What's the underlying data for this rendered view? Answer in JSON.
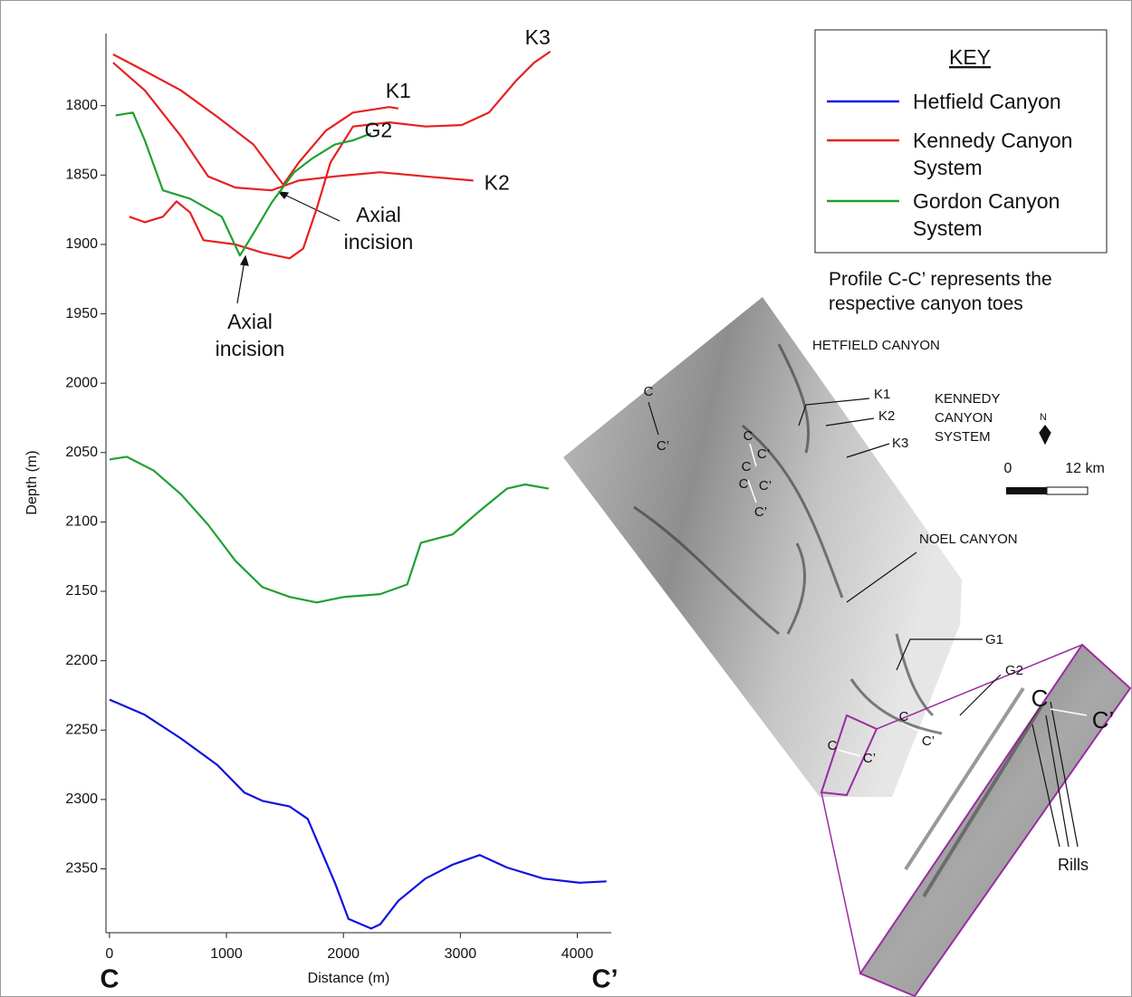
{
  "chart_data": {
    "type": "line",
    "x_label": "Distance (m)",
    "y_label": "Depth (m)",
    "xlim": [
      -30,
      4290
    ],
    "ylim": [
      1748,
      2396
    ],
    "y_inverted": true,
    "xticks": [
      0,
      1000,
      2000,
      3000,
      4000
    ],
    "yticks": [
      1800,
      1850,
      1900,
      1950,
      2000,
      2050,
      2100,
      2150,
      2200,
      2250,
      2300,
      2350
    ],
    "profile_ends": [
      "C",
      "C’"
    ],
    "legend_title": "KEY",
    "legend": [
      {
        "name": "Hetfield Canyon",
        "color": "#1010e0"
      },
      {
        "name": "Kennedy Canyon System",
        "color": "#e82020"
      },
      {
        "name": "Gordon Canyon System",
        "color": "#20a030"
      }
    ],
    "series": [
      {
        "label": "K1",
        "color": "#e82020",
        "x": [
          31,
          302,
          611,
          921,
          1231,
          1486,
          1618,
          1850,
          2082,
          2392,
          2469
        ],
        "values": [
          1763,
          1775,
          1789,
          1808,
          1828,
          1857,
          1841,
          1818,
          1805,
          1801,
          1802
        ]
      },
      {
        "label": "K2",
        "color": "#e82020",
        "x": [
          31,
          302,
          611,
          843,
          1076,
          1385,
          1618,
          1927,
          2314,
          2701,
          3111
        ],
        "values": [
          1769,
          1789,
          1822,
          1851,
          1859,
          1861,
          1854,
          1851,
          1848,
          1851,
          1854
        ]
      },
      {
        "label": "K3",
        "color": "#e82020",
        "x": [
          170,
          302,
          457,
          573,
          689,
          804,
          1076,
          1308,
          1540,
          1656,
          1772,
          1889,
          2082,
          2392,
          2701,
          3011,
          3244,
          3476,
          3630,
          3769
        ],
        "values": [
          1880,
          1884,
          1880,
          1869,
          1877,
          1897,
          1900,
          1906,
          1910,
          1903,
          1874,
          1841,
          1815,
          1812,
          1815,
          1814,
          1805,
          1782,
          1769,
          1761
        ]
      },
      {
        "label": "G2",
        "color": "#20a030",
        "x": [
          54,
          201,
          302,
          457,
          689,
          960,
          1115,
          1231,
          1385,
          1579,
          1734,
          1927,
          2082,
          2237
        ],
        "values": [
          1807,
          1805,
          1825,
          1861,
          1867,
          1880,
          1908,
          1892,
          1870,
          1848,
          1838,
          1828,
          1825,
          1820
        ]
      },
      {
        "color": "#20a030",
        "x": [
          0,
          147,
          379,
          611,
          843,
          1076,
          1308,
          1540,
          1772,
          2005,
          2314,
          2546,
          2663,
          2933,
          3166,
          3398,
          3553,
          3754
        ],
        "values": [
          2055,
          2053,
          2063,
          2080,
          2102,
          2128,
          2147,
          2154,
          2158,
          2154,
          2152,
          2145,
          2115,
          2109,
          2092,
          2076,
          2073,
          2076
        ]
      },
      {
        "color": "#1010e0",
        "x": [
          0,
          302,
          611,
          921,
          1153,
          1308,
          1540,
          1695,
          1811,
          1927,
          2043,
          2237,
          2314,
          2469,
          2701,
          2933,
          3166,
          3398,
          3708,
          4017,
          4249
        ],
        "values": [
          2228,
          2239,
          2256,
          2275,
          2295,
          2301,
          2305,
          2314,
          2337,
          2360,
          2386,
          2393,
          2390,
          2373,
          2357,
          2347,
          2340,
          2349,
          2357,
          2360,
          2359
        ]
      }
    ],
    "annotations": [
      {
        "text": "Axial incision"
      },
      {
        "text": "Axial incision"
      }
    ],
    "note": "Profile C-C’ represents the respective canyon toes"
  },
  "map": {
    "labels": [
      "HETFIELD CANYON",
      "K1",
      "K2",
      "K3",
      "KENNEDY CANYON SYSTEM",
      "NOEL CANYON",
      "G1",
      "G2",
      "Rills",
      "N"
    ],
    "scale": [
      "0",
      "12 km"
    ],
    "profile_labels": [
      "C",
      "C’",
      "C",
      "C’",
      "C",
      "C’",
      "C",
      "C’",
      "C",
      "C’",
      "C",
      "C’",
      "C",
      "C’"
    ]
  }
}
